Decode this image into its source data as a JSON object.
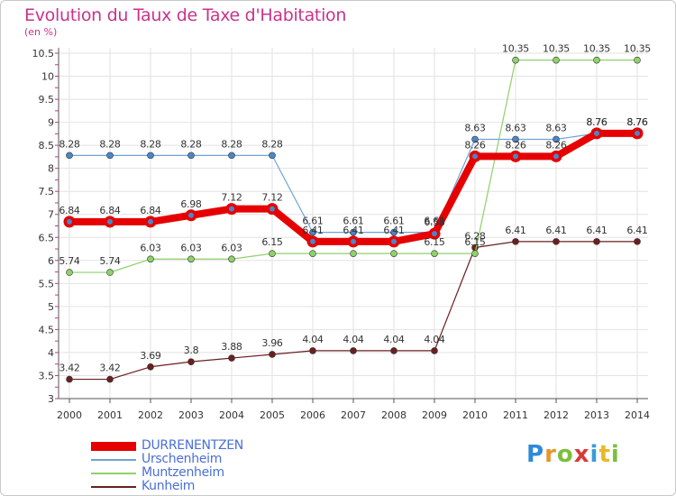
{
  "title": "Evolution du Taux de Taxe d'Habitation",
  "unit_label": "(en %)",
  "logo": {
    "letters": [
      "P",
      "r",
      "o",
      "x",
      "i",
      "t",
      "i"
    ],
    "colors": [
      "#2e8ad8",
      "#e8962b",
      "#7cbf3c",
      "#d83a3a",
      "#3c9ad8",
      "#e8b82b",
      "#7cbf3c"
    ]
  },
  "chart_data": {
    "type": "line",
    "x": [
      "2000",
      "2001",
      "2002",
      "2003",
      "2004",
      "2005",
      "2006",
      "2007",
      "2008",
      "2009",
      "2010",
      "2011",
      "2012",
      "2013",
      "2014"
    ],
    "ylim": [
      3,
      10.5
    ],
    "yticks": [
      "3",
      "3.5",
      "4",
      "4.5",
      "5",
      "5.5",
      "6",
      "6.5",
      "7",
      "7.5",
      "8",
      "8.5",
      "9",
      "9.5",
      "10",
      "10.5"
    ],
    "grid": true,
    "legend_position": "bottom-left",
    "series": [
      {
        "name": "Kunheim",
        "color": "#6b1f1f",
        "values": [
          3.42,
          3.42,
          3.69,
          3.8,
          3.88,
          3.96,
          4.04,
          4.04,
          4.04,
          4.04,
          6.28,
          6.41,
          6.41,
          6.41,
          6.41
        ],
        "labels": [
          "3.42",
          "3.42",
          "3.69",
          "3.8",
          "3.88",
          "3.96",
          "4.04",
          "4.04",
          "4.04",
          "4.04",
          "6.28",
          "6.41",
          "6.41",
          "6.41",
          "6.41"
        ]
      },
      {
        "name": "Muntzenheim",
        "color": "#8fd16a",
        "values": [
          5.74,
          5.74,
          6.03,
          6.03,
          6.03,
          6.15,
          6.15,
          6.15,
          6.15,
          6.15,
          6.15,
          10.35,
          10.35,
          10.35,
          10.35
        ],
        "labels": [
          "5.74",
          "5.74",
          "6.03",
          "6.03",
          "6.03",
          "6.15",
          "",
          "",
          "",
          "6.15",
          "6.15",
          "10.35",
          "10.35",
          "10.35",
          "10.35"
        ]
      },
      {
        "name": "Urschenheim",
        "color": "#6ea3d6",
        "values": [
          8.28,
          8.28,
          8.28,
          8.28,
          8.28,
          8.28,
          6.61,
          6.61,
          6.61,
          6.61,
          8.63,
          8.63,
          8.63,
          8.76,
          8.76
        ],
        "labels": [
          "8.28",
          "8.28",
          "8.28",
          "8.28",
          "8.28",
          "8.28",
          "6.61",
          "6.61",
          "6.61",
          "6.61",
          "8.63",
          "8.63",
          "8.63",
          "8.76",
          "8.76"
        ]
      },
      {
        "name": "DURRENENTZEN",
        "color": "#e60000",
        "values": [
          6.84,
          6.84,
          6.84,
          6.98,
          7.12,
          7.12,
          6.41,
          6.41,
          6.41,
          6.58,
          8.26,
          8.26,
          8.26,
          8.76,
          8.76
        ],
        "labels": [
          "6.84",
          "6.84",
          "6.84",
          "6.98",
          "7.12",
          "7.12",
          "6.41",
          "6.41",
          "6.41",
          "6.58",
          "8.26",
          "8.26",
          "8.26",
          "8.76",
          "8.76"
        ]
      }
    ],
    "legend_order": [
      "DURRENENTZEN",
      "Urschenheim",
      "Muntzenheim",
      "Kunheim"
    ]
  }
}
